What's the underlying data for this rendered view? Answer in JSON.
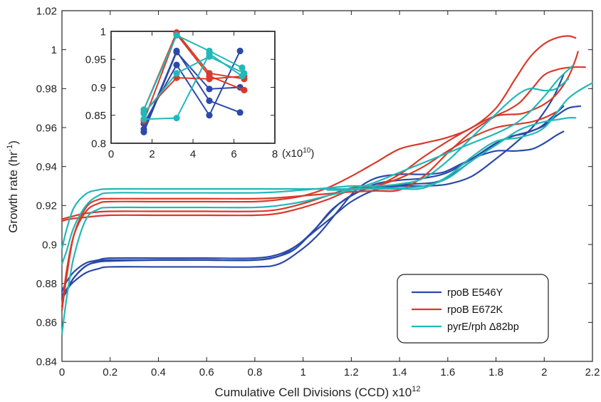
{
  "chart_data": [
    {
      "type": "line",
      "title": "",
      "xlabel": "Cumulative Cell Divisions (CCD) x10",
      "xlabel_exponent": "12",
      "ylabel": "Growth rate (hr",
      "ylabel_exponent": "-1",
      "ylabel_suffix": ")",
      "xlim": [
        0,
        2.2
      ],
      "ylim": [
        0.84,
        1.02
      ],
      "xticks": [
        0,
        0.2,
        0.4,
        0.6,
        0.8,
        1,
        1.2,
        1.4,
        1.6,
        1.8,
        2,
        2.2
      ],
      "xtick_labels": [
        "0",
        "0.2",
        "0.4",
        "0.6",
        "0.8",
        "1",
        "1.2",
        "1.4",
        "1.6",
        "1.8",
        "2",
        "2.2"
      ],
      "yticks": [
        0.84,
        0.86,
        0.88,
        0.9,
        0.92,
        0.94,
        0.96,
        0.98,
        1,
        1.02
      ],
      "ytick_labels": [
        "0.84",
        "0.86",
        "0.88",
        "0.9",
        "0.92",
        "0.94",
        "0.96",
        "0.98",
        "1",
        "1.02"
      ],
      "grid": false,
      "legend_position": "bottom-right",
      "legend": [
        {
          "label": "rpoB E546Y",
          "color": "#2b4aa8"
        },
        {
          "label": "rpoB E672K",
          "color": "#d93a2b"
        },
        {
          "label": "pyrE/rph  Δ82bp",
          "color": "#22b8b8"
        }
      ],
      "series": [
        {
          "group": "rpoB E546Y",
          "color": "#2b4aa8",
          "x": [
            0,
            0.02,
            0.05,
            0.1,
            0.15,
            0.2,
            0.4,
            0.6,
            0.8,
            0.9,
            0.97,
            1.05,
            1.15,
            1.25,
            1.35,
            1.45,
            1.55,
            1.62,
            1.7,
            1.78,
            1.85,
            1.92,
            1.98,
            2.02,
            2.08
          ],
          "y": [
            0.873,
            0.877,
            0.883,
            0.889,
            0.891,
            0.8915,
            0.892,
            0.892,
            0.892,
            0.894,
            0.898,
            0.908,
            0.921,
            0.928,
            0.93,
            0.931,
            0.932,
            0.936,
            0.943,
            0.95,
            0.955,
            0.957,
            0.96,
            0.964,
            0.971
          ]
        },
        {
          "group": "rpoB E546Y",
          "color": "#2b4aa8",
          "x": [
            0,
            0.02,
            0.05,
            0.1,
            0.15,
            0.2,
            0.4,
            0.6,
            0.8,
            0.9,
            0.98,
            1.05,
            1.12,
            1.2,
            1.3,
            1.4,
            1.5,
            1.6,
            1.7,
            1.8,
            1.88,
            1.94,
            2.0,
            2.05,
            2.1,
            2.15
          ],
          "y": [
            0.876,
            0.881,
            0.886,
            0.8905,
            0.892,
            0.893,
            0.893,
            0.893,
            0.893,
            0.895,
            0.9,
            0.908,
            0.918,
            0.925,
            0.931,
            0.933,
            0.934,
            0.937,
            0.944,
            0.952,
            0.956,
            0.958,
            0.961,
            0.966,
            0.97,
            0.971
          ]
        },
        {
          "group": "rpoB E546Y",
          "color": "#2b4aa8",
          "x": [
            0,
            0.02,
            0.05,
            0.1,
            0.15,
            0.2,
            0.4,
            0.6,
            0.8,
            0.9,
            1.0,
            1.07,
            1.15,
            1.22,
            1.3,
            1.4,
            1.5,
            1.58,
            1.65,
            1.72,
            1.8,
            1.88,
            1.95,
            2.0,
            2.05,
            2.08
          ],
          "y": [
            0.874,
            0.877,
            0.881,
            0.8855,
            0.8875,
            0.8885,
            0.8885,
            0.8885,
            0.8885,
            0.89,
            0.898,
            0.906,
            0.918,
            0.928,
            0.934,
            0.936,
            0.936,
            0.937,
            0.941,
            0.945,
            0.948,
            0.948,
            0.949,
            0.952,
            0.956,
            0.958
          ]
        },
        {
          "group": "rpoB E546Y",
          "color": "#2b4aa8",
          "x": [
            0,
            0.02,
            0.05,
            0.1,
            0.15,
            0.2,
            0.4,
            0.6,
            0.8,
            0.9,
            0.98,
            1.05,
            1.12,
            1.2,
            1.3,
            1.4,
            1.5,
            1.6,
            1.7,
            1.8,
            1.88,
            1.95,
            2.0,
            2.04,
            2.08
          ],
          "y": [
            0.872,
            0.876,
            0.883,
            0.889,
            0.8915,
            0.892,
            0.892,
            0.892,
            0.892,
            0.894,
            0.9,
            0.907,
            0.914,
            0.922,
            0.928,
            0.93,
            0.93,
            0.931,
            0.935,
            0.944,
            0.952,
            0.96,
            0.968,
            0.976,
            0.987
          ]
        },
        {
          "group": "rpoB E672K",
          "color": "#d93a2b",
          "x": [
            0,
            0.02,
            0.05,
            0.1,
            0.15,
            0.2,
            0.4,
            0.6,
            0.8,
            0.9,
            1.0,
            1.1,
            1.2,
            1.3,
            1.4,
            1.5,
            1.6,
            1.7,
            1.8,
            1.88,
            1.94,
            2.0,
            2.05,
            2.1,
            2.13
          ],
          "y": [
            0.868,
            0.887,
            0.905,
            0.917,
            0.921,
            0.922,
            0.922,
            0.922,
            0.922,
            0.923,
            0.925,
            0.929,
            0.935,
            0.942,
            0.949,
            0.952,
            0.955,
            0.96,
            0.97,
            0.985,
            0.996,
            1.003,
            1.006,
            1.007,
            1.006
          ]
        },
        {
          "group": "rpoB E672K",
          "color": "#d93a2b",
          "x": [
            0,
            0.02,
            0.05,
            0.1,
            0.15,
            0.2,
            0.4,
            0.6,
            0.8,
            0.9,
            1.0,
            1.1,
            1.2,
            1.3,
            1.4,
            1.5,
            1.6,
            1.7,
            1.8,
            1.85,
            1.9,
            1.95,
            2.0,
            2.06,
            2.12,
            2.17
          ],
          "y": [
            0.866,
            0.884,
            0.905,
            0.919,
            0.923,
            0.9235,
            0.9235,
            0.9235,
            0.9235,
            0.924,
            0.925,
            0.926,
            0.927,
            0.9275,
            0.928,
            0.935,
            0.947,
            0.958,
            0.966,
            0.969,
            0.973,
            0.98,
            0.987,
            0.99,
            0.991,
            0.991
          ]
        },
        {
          "group": "rpoB E672K",
          "color": "#d93a2b",
          "x": [
            0,
            0.03,
            0.1,
            0.2,
            0.4,
            0.6,
            0.8,
            0.9,
            1.0,
            1.1,
            1.2,
            1.3,
            1.4,
            1.5,
            1.6,
            1.7,
            1.8,
            1.9,
            1.95,
            2.0,
            2.05,
            2.1,
            2.13,
            2.14
          ],
          "y": [
            0.913,
            0.914,
            0.916,
            0.917,
            0.917,
            0.917,
            0.917,
            0.918,
            0.921,
            0.925,
            0.929,
            0.93,
            0.936,
            0.945,
            0.953,
            0.96,
            0.966,
            0.967,
            0.969,
            0.972,
            0.977,
            0.986,
            0.995,
            0.999
          ]
        },
        {
          "group": "rpoB E672K",
          "color": "#d93a2b",
          "x": [
            0,
            0.03,
            0.1,
            0.2,
            0.4,
            0.6,
            0.8,
            0.9,
            1.0,
            1.1,
            1.2,
            1.3,
            1.4,
            1.5,
            1.6,
            1.7,
            1.8,
            1.9,
            1.95,
            2.0,
            2.05
          ],
          "y": [
            0.912,
            0.913,
            0.914,
            0.915,
            0.915,
            0.915,
            0.915,
            0.916,
            0.919,
            0.923,
            0.928,
            0.93,
            0.934,
            0.94,
            0.948,
            0.955,
            0.96,
            0.962,
            0.963,
            0.965,
            0.968
          ]
        },
        {
          "group": "pyrE/rph  Δ82bp",
          "color": "#22b8b8",
          "x": [
            0,
            0.02,
            0.05,
            0.1,
            0.15,
            0.2,
            0.4,
            0.6,
            0.8,
            0.9,
            1.0,
            1.1,
            1.2,
            1.3,
            1.4,
            1.5,
            1.6,
            1.7,
            1.8,
            1.88,
            1.94,
            2.0,
            2.06,
            2.12
          ],
          "y": [
            0.854,
            0.873,
            0.894,
            0.913,
            0.918,
            0.919,
            0.919,
            0.919,
            0.919,
            0.92,
            0.922,
            0.925,
            0.928,
            0.932,
            0.937,
            0.942,
            0.947,
            0.952,
            0.957,
            0.962,
            0.968,
            0.976,
            0.985,
            0.992
          ]
        },
        {
          "group": "pyrE/rph  Δ82bp",
          "color": "#22b8b8",
          "x": [
            0,
            0.02,
            0.05,
            0.1,
            0.15,
            0.2,
            0.4,
            0.6,
            0.8,
            0.9,
            1.0,
            1.1,
            1.2,
            1.3,
            1.4,
            1.5,
            1.6,
            1.7,
            1.8,
            1.88,
            1.94,
            2.0,
            2.05,
            2.1
          ],
          "y": [
            0.89,
            0.897,
            0.909,
            0.92,
            0.925,
            0.9265,
            0.9265,
            0.9265,
            0.9265,
            0.927,
            0.928,
            0.929,
            0.93,
            0.93,
            0.931,
            0.934,
            0.943,
            0.955,
            0.967,
            0.976,
            0.98,
            0.979,
            0.98,
            0.985
          ]
        },
        {
          "group": "pyrE/rph  Δ82bp",
          "color": "#22b8b8",
          "x": [
            0,
            0.02,
            0.05,
            0.1,
            0.15,
            0.2,
            0.4,
            0.6,
            0.8,
            1.0,
            1.2,
            1.4,
            1.5,
            1.6,
            1.7,
            1.8,
            1.9,
            2.0,
            2.1,
            2.2
          ],
          "y": [
            0.898,
            0.908,
            0.919,
            0.926,
            0.928,
            0.9285,
            0.9285,
            0.9285,
            0.9285,
            0.9285,
            0.9285,
            0.9285,
            0.929,
            0.935,
            0.945,
            0.953,
            0.955,
            0.96,
            0.975,
            0.983
          ]
        },
        {
          "group": "pyrE/rph  Δ82bp",
          "color": "#22b8b8",
          "x": [
            1.1,
            1.2,
            1.3,
            1.4,
            1.5,
            1.6,
            1.7,
            1.8,
            1.9,
            2.0,
            2.05,
            2.1,
            2.13
          ],
          "y": [
            0.928,
            0.928,
            0.929,
            0.929,
            0.93,
            0.934,
            0.943,
            0.951,
            0.959,
            0.963,
            0.964,
            0.965,
            0.965
          ]
        }
      ]
    },
    {
      "type": "line",
      "title": "",
      "xlabel": "(x10",
      "xlabel_exponent": "10",
      "xlabel_suffix": ")",
      "xlim": [
        0,
        8
      ],
      "ylim": [
        0.8,
        1
      ],
      "xticks": [
        0,
        2,
        4,
        6,
        8
      ],
      "xtick_labels": [
        "0",
        "2",
        "4",
        "6",
        "8"
      ],
      "yticks": [
        0.8,
        0.85,
        0.9,
        0.95,
        1
      ],
      "ytick_labels": [
        "0.8",
        "0.85",
        "0.9",
        "0.95",
        "1"
      ],
      "grid": false,
      "markers": true,
      "series": [
        {
          "group": "rpoB E546Y",
          "color": "#2b4aa8",
          "x": [
            1.6,
            3.2,
            4.8,
            6.3
          ],
          "y": [
            0.82,
            0.963,
            0.897,
            0.9
          ]
        },
        {
          "group": "rpoB E546Y",
          "color": "#2b4aa8",
          "x": [
            1.6,
            3.2,
            4.8,
            6.3
          ],
          "y": [
            0.825,
            0.965,
            0.876,
            0.855
          ]
        },
        {
          "group": "rpoB E546Y",
          "color": "#2b4aa8",
          "x": [
            1.6,
            3.2,
            4.8,
            6.3
          ],
          "y": [
            0.835,
            0.94,
            0.85,
            0.965
          ]
        },
        {
          "group": "rpoB E672K",
          "color": "#d93a2b",
          "x": [
            1.6,
            3.2,
            4.8,
            6.5
          ],
          "y": [
            0.86,
            0.998,
            0.925,
            0.915
          ]
        },
        {
          "group": "rpoB E672K",
          "color": "#d93a2b",
          "x": [
            1.6,
            3.2,
            4.8,
            6.5
          ],
          "y": [
            0.84,
            0.995,
            0.92,
            0.895
          ]
        },
        {
          "group": "rpoB E672K",
          "color": "#d93a2b",
          "x": [
            1.6,
            3.2,
            4.8,
            6.5
          ],
          "y": [
            0.855,
            0.917,
            0.915,
            0.92
          ]
        },
        {
          "group": "pyrE/rph  Δ82bp",
          "color": "#22b8b8",
          "x": [
            1.6,
            3.2,
            4.8,
            6.4
          ],
          "y": [
            0.86,
            0.993,
            0.965,
            0.935
          ]
        },
        {
          "group": "pyrE/rph  Δ82bp",
          "color": "#22b8b8",
          "x": [
            1.6,
            3.2,
            4.8,
            6.4
          ],
          "y": [
            0.843,
            0.845,
            0.96,
            0.92
          ]
        },
        {
          "group": "pyrE/rph  Δ82bp",
          "color": "#22b8b8",
          "x": [
            1.6,
            3.2,
            4.8,
            6.5
          ],
          "y": [
            0.853,
            0.925,
            0.955,
            0.925
          ]
        }
      ]
    }
  ]
}
